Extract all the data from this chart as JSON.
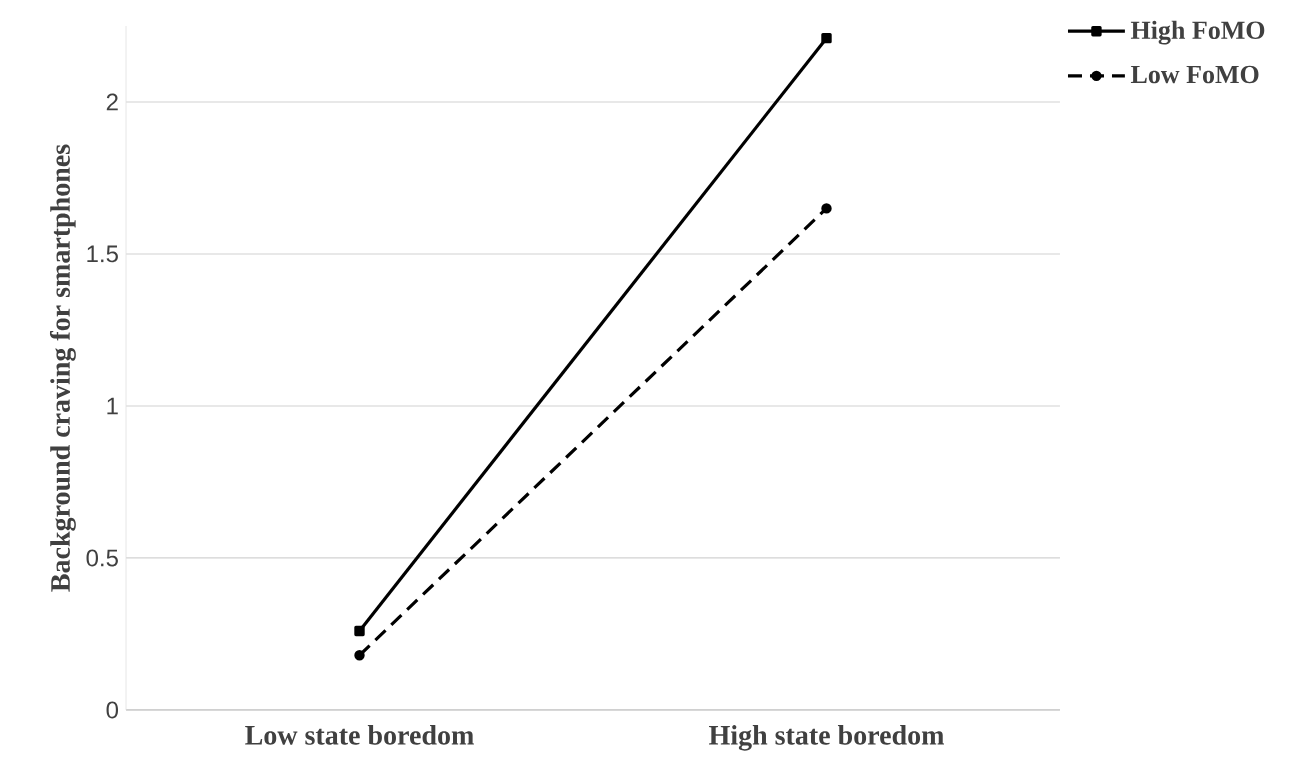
{
  "chart_data": {
    "type": "line",
    "ylabel": "Background craving for smartphones",
    "categories": [
      "Low state boredom",
      "High state boredom"
    ],
    "series": [
      {
        "name": "High FoMO",
        "color": "#000000",
        "values": [
          0.26,
          2.21
        ],
        "marker": "square",
        "line_style": "solid"
      },
      {
        "name": "Low FoMO",
        "color": "#000000",
        "values": [
          0.18,
          1.65
        ],
        "marker": "circle",
        "line_style": "dashed"
      }
    ],
    "ylim": [
      0,
      2.25
    ],
    "yticks": [
      0,
      0.5,
      1,
      1.5,
      2
    ],
    "grid": "y",
    "legend": "top right"
  }
}
